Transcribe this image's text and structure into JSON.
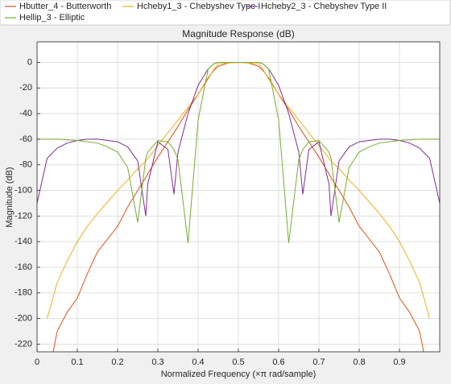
{
  "chart_data": {
    "type": "line",
    "title": "Magnitude Response (dB)",
    "x_label": "Normalized Frequency (×π rad/sample)",
    "y_label": "Magnitude (dB)",
    "x": [
      0,
      0.025,
      0.05,
      0.075,
      0.1,
      0.125,
      0.15,
      0.175,
      0.2,
      0.225,
      0.25,
      0.27,
      0.275,
      0.3,
      0.325,
      0.34,
      0.35,
      0.375,
      0.4,
      0.425,
      0.44,
      0.45,
      0.475,
      0.5,
      0.525,
      0.55,
      0.56,
      0.575,
      0.6,
      0.625,
      0.65,
      0.66,
      0.675,
      0.7,
      0.725,
      0.73,
      0.75,
      0.775,
      0.8,
      0.825,
      0.85,
      0.875,
      0.9,
      0.925,
      0.95,
      0.975,
      1
    ],
    "series": [
      {
        "name": "Hbutter_4 - Butterworth",
        "color": "#d95319",
        "values": [
          null,
          -250,
          -210,
          -195,
          -184,
          -165,
          -148,
          -138,
          -128,
          -113,
          -100,
          -90,
          -87,
          -74,
          -62,
          -55,
          -50,
          -37,
          -25,
          -12,
          -6,
          -3,
          -0.5,
          0,
          -0.5,
          -3,
          -6,
          -12,
          -25,
          -37,
          -50,
          -55,
          -62,
          -74,
          -87,
          -90,
          -100,
          -113,
          -128,
          -138,
          -148,
          -165,
          -184,
          -195,
          -210,
          -250,
          null
        ]
      },
      {
        "name": "Hcheby1_3 - Chebyshev Type I",
        "color": "#edb120",
        "values": [
          null,
          -200,
          -172,
          -155,
          -140,
          -128,
          -118,
          -109,
          -100,
          -92,
          -83,
          -77,
          -75,
          -65,
          -55,
          -49,
          -45,
          -35,
          -25,
          -13,
          -5,
          -1,
          -0.5,
          0,
          -0.5,
          -1,
          -5,
          -13,
          -25,
          -35,
          -45,
          -49,
          -55,
          -65,
          -75,
          -77,
          -83,
          -92,
          -100,
          -109,
          -118,
          -128,
          -140,
          -155,
          -172,
          -200,
          null
        ]
      },
      {
        "name": "Hcheby2_3 - Chebyshev Type II",
        "color": "#7e2f8e",
        "values": [
          -110,
          -75,
          -67,
          -63,
          -61,
          -60,
          -60,
          -61,
          -62,
          -66,
          -77,
          -120,
          -95,
          -62,
          -68,
          -103,
          -70,
          -40,
          -18,
          -5,
          -1,
          0,
          0,
          0,
          0,
          0,
          -1,
          -5,
          -18,
          -40,
          -70,
          -103,
          -68,
          -62,
          -95,
          -120,
          -77,
          -66,
          -62,
          -61,
          -60,
          -60,
          -61,
          -63,
          -67,
          -75,
          -110
        ]
      },
      {
        "name": "Hellip_3 - Elliptic",
        "color": "#77ac30",
        "values": [
          -60,
          -60,
          -60,
          -60.5,
          -61,
          -62,
          -63,
          -66,
          -70,
          -82,
          -125,
          -75,
          -70,
          -61,
          -62,
          -68,
          -76,
          -141,
          -45,
          -5,
          -1,
          0,
          0,
          0,
          0,
          0,
          -1,
          -5,
          -45,
          -141,
          -76,
          -68,
          -62,
          -61,
          -70,
          -75,
          -125,
          -82,
          -70,
          -66,
          -63,
          -62,
          -61,
          -60.5,
          -60,
          -60,
          -60
        ]
      }
    ],
    "xlim": [
      0,
      1
    ],
    "xticks": [
      0,
      0.1,
      0.2,
      0.3,
      0.4,
      0.5,
      0.6,
      0.7,
      0.8,
      0.9
    ],
    "ylim": [
      -226,
      16
    ],
    "yticks": [
      0,
      -20,
      -40,
      -60,
      -80,
      -100,
      -120,
      -140,
      -160,
      -180,
      -200,
      -220
    ],
    "grid": true,
    "legend": "top"
  }
}
